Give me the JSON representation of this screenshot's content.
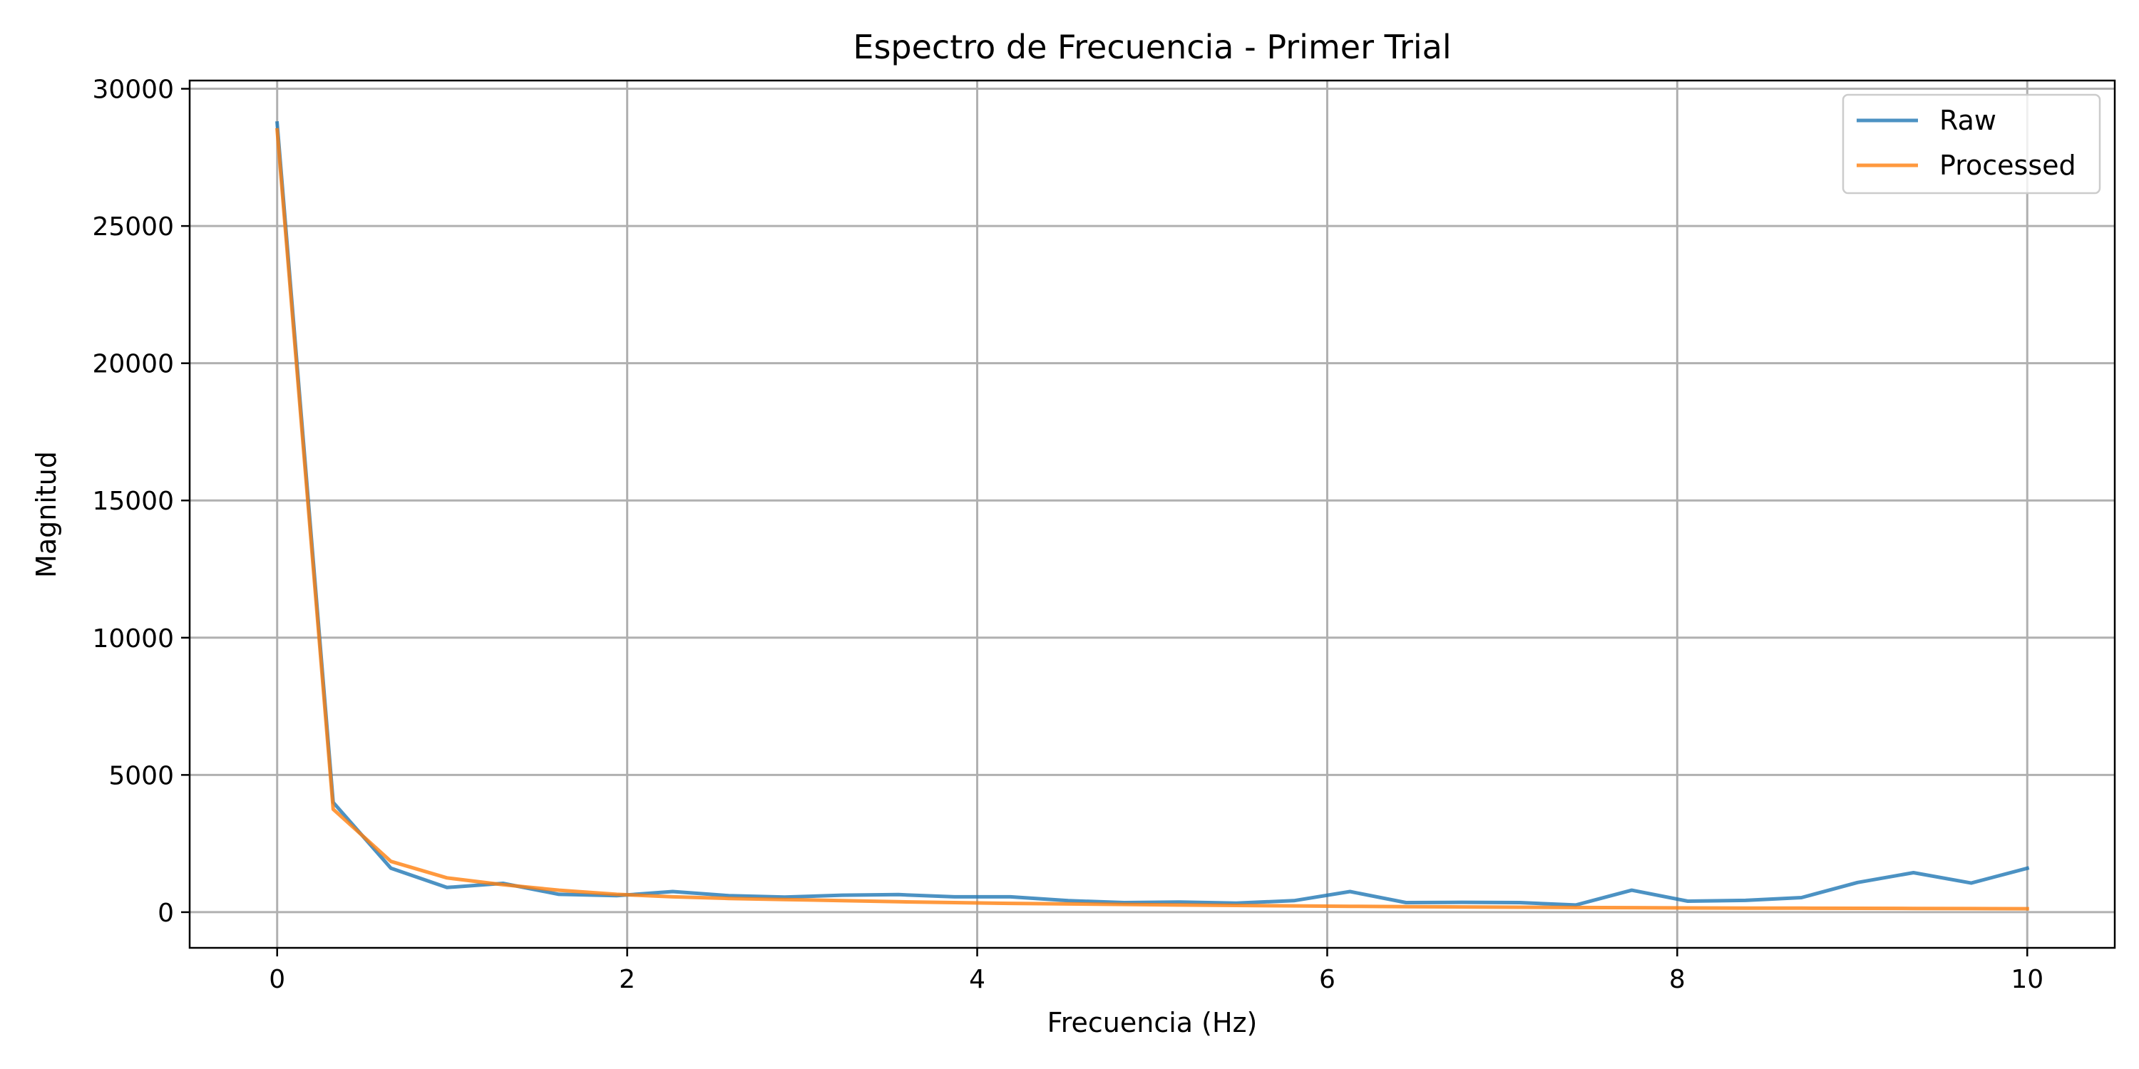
{
  "chart_data": {
    "type": "line",
    "title": "Espectro de Frecuencia - Primer Trial",
    "xlabel": "Frecuencia (Hz)",
    "ylabel": "Magnitud",
    "xlim": [
      -0.5,
      10.5
    ],
    "ylim": [
      -1300,
      30300
    ],
    "xticks": [
      0,
      2,
      4,
      6,
      8,
      10
    ],
    "xtick_labels": [
      "0",
      "2",
      "4",
      "6",
      "8",
      "10"
    ],
    "yticks": [
      0,
      5000,
      10000,
      15000,
      20000,
      25000,
      30000
    ],
    "ytick_labels": [
      "0",
      "5000",
      "10000",
      "15000",
      "20000",
      "25000",
      "30000"
    ],
    "grid": true,
    "legend_position": "top-right",
    "x": [
      0,
      0.32,
      0.65,
      0.97,
      1.29,
      1.61,
      1.94,
      2.26,
      2.58,
      2.9,
      3.23,
      3.55,
      3.87,
      4.19,
      4.52,
      4.84,
      5.16,
      5.48,
      5.81,
      6.13,
      6.45,
      6.77,
      7.1,
      7.42,
      7.74,
      8.06,
      8.39,
      8.71,
      9.03,
      9.35,
      9.68,
      10.0
    ],
    "series": [
      {
        "name": "Raw",
        "color": "#1f77b4",
        "values": [
          28750,
          4000,
          1600,
          900,
          1050,
          650,
          600,
          750,
          600,
          550,
          620,
          640,
          560,
          560,
          420,
          350,
          370,
          330,
          420,
          750,
          350,
          360,
          350,
          260,
          800,
          400,
          430,
          530,
          1080,
          1440,
          1060,
          1600
        ]
      },
      {
        "name": "Processed",
        "color": "#ff7f0e",
        "values": [
          28500,
          3750,
          1850,
          1250,
          1000,
          800,
          650,
          560,
          500,
          460,
          420,
          380,
          350,
          320,
          300,
          280,
          260,
          245,
          230,
          215,
          200,
          190,
          180,
          170,
          165,
          155,
          150,
          145,
          140,
          135,
          130,
          125
        ]
      }
    ]
  }
}
